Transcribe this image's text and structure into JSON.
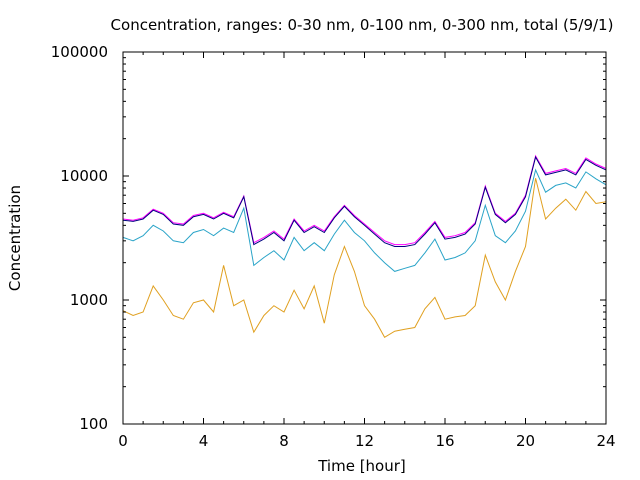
{
  "chart_data": {
    "type": "line",
    "title": "Concentration, ranges: 0-30 nm, 0-100 nm, 0-300 nm, total (5/9/1)",
    "xlabel": "Time [hour]",
    "ylabel": "Concentration",
    "xlim": [
      0,
      24
    ],
    "ylim": [
      100,
      100000
    ],
    "yscale": "log",
    "grid": false,
    "legend": "none",
    "x_ticks": [
      "0",
      "4",
      "8",
      "12",
      "16",
      "20",
      "24"
    ],
    "y_ticks": [
      "100",
      "1000",
      "10000",
      "100000"
    ],
    "x": [
      0,
      0.5,
      1,
      1.5,
      2,
      2.5,
      3,
      3.5,
      4,
      4.5,
      5,
      5.5,
      6,
      6.5,
      7,
      7.5,
      8,
      8.5,
      9,
      9.5,
      10,
      10.5,
      11,
      11.5,
      12,
      12.5,
      13,
      13.5,
      14,
      14.5,
      15,
      15.5,
      16,
      16.5,
      17,
      17.5,
      18,
      18.5,
      19,
      19.5,
      20,
      20.5,
      21,
      21.5,
      22,
      22.5,
      23,
      23.5,
      24
    ],
    "series": [
      {
        "color": "#ff00ff",
        "values": [
          4500,
          4400,
          4600,
          5400,
          5000,
          4200,
          4100,
          4800,
          5000,
          4600,
          5100,
          4700,
          6900,
          2900,
          3200,
          3600,
          3100,
          4500,
          3600,
          4000,
          3600,
          4700,
          5800,
          4800,
          4100,
          3500,
          3000,
          2800,
          2800,
          2900,
          3500,
          4300,
          3200,
          3300,
          3500,
          4200,
          8300,
          5000,
          4300,
          5000,
          7000,
          14500,
          10500,
          11000,
          11500,
          10500,
          14000,
          12500,
          11500
        ]
      },
      {
        "color": "#000080",
        "values": [
          4400,
          4300,
          4500,
          5300,
          4900,
          4100,
          4000,
          4700,
          4900,
          4500,
          5000,
          4600,
          6800,
          2800,
          3100,
          3500,
          3000,
          4400,
          3500,
          3900,
          3500,
          4600,
          5700,
          4700,
          4000,
          3400,
          2900,
          2700,
          2700,
          2800,
          3400,
          4200,
          3100,
          3200,
          3400,
          4100,
          8100,
          4900,
          4200,
          4900,
          6800,
          14200,
          10200,
          10700,
          11200,
          10200,
          13600,
          12200,
          11200
        ]
      },
      {
        "color": "#2aa4c8",
        "values": [
          3200,
          3000,
          3300,
          4000,
          3600,
          3000,
          2900,
          3500,
          3700,
          3300,
          3800,
          3500,
          5500,
          1900,
          2200,
          2500,
          2100,
          3200,
          2500,
          2900,
          2500,
          3400,
          4400,
          3500,
          3000,
          2400,
          2000,
          1700,
          1800,
          1900,
          2400,
          3100,
          2100,
          2200,
          2400,
          3000,
          5800,
          3300,
          2900,
          3600,
          5200,
          11200,
          7400,
          8400,
          8800,
          8000,
          10800,
          9500,
          8500
        ]
      },
      {
        "color": "#e0a020",
        "values": [
          820,
          750,
          800,
          1300,
          1000,
          750,
          700,
          950,
          1000,
          800,
          1900,
          900,
          1000,
          550,
          750,
          900,
          800,
          1200,
          850,
          1300,
          650,
          1600,
          2700,
          1700,
          900,
          700,
          500,
          560,
          580,
          600,
          850,
          1050,
          700,
          730,
          750,
          900,
          2300,
          1400,
          1000,
          1700,
          2700,
          9600,
          4500,
          5500,
          6500,
          5300,
          7500,
          6000,
          6200
        ]
      }
    ]
  }
}
